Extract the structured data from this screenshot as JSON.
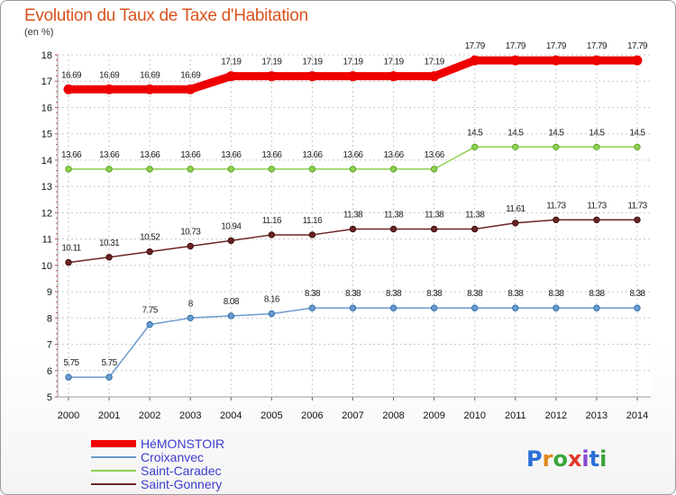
{
  "header": {
    "title": "Evolution du Taux de Taxe d'Habitation",
    "unit": "(en %)"
  },
  "logo": {
    "text": "Proxiti"
  },
  "colors": {
    "HéMONSTOIR": "#ee0000",
    "Croixanvec": "#6b9bcf",
    "Saint-Caradec": "#8fd14f",
    "Saint-Gonnery": "#6b2424"
  },
  "chart_data": {
    "type": "line",
    "title": "Evolution du Taux de Taxe d'Habitation",
    "ylabel": "(en %)",
    "xlabel": "",
    "x": [
      "2000",
      "2001",
      "2002",
      "2003",
      "2004",
      "2005",
      "2006",
      "2007",
      "2008",
      "2009",
      "2010",
      "2011",
      "2012",
      "2013",
      "2014"
    ],
    "ylim": [
      5,
      18
    ],
    "yticks": [
      "5",
      "6",
      "7",
      "8",
      "9",
      "10",
      "11",
      "12",
      "13",
      "14",
      "15",
      "16",
      "17",
      "18"
    ],
    "grid": true,
    "legend_position": "bottom-left",
    "series": [
      {
        "name": "HéMONSTOIR",
        "values": [
          16.69,
          16.69,
          16.69,
          16.69,
          17.19,
          17.19,
          17.19,
          17.19,
          17.19,
          17.19,
          17.79,
          17.79,
          17.79,
          17.79,
          17.79
        ],
        "labels": [
          "16.69",
          "16.69",
          "16.69",
          "16.69",
          "17.19",
          "17.19",
          "17.19",
          "17.19",
          "17.19",
          "17.19",
          "17.79",
          "17.79",
          "17.79",
          "17.79",
          "17.79"
        ],
        "label_indices": [
          0,
          1,
          2,
          3,
          4,
          5,
          6,
          7,
          8,
          9,
          10,
          11,
          12,
          13,
          14
        ]
      },
      {
        "name": "Croixanvec",
        "values": [
          5.75,
          5.75,
          7.75,
          8,
          8.08,
          8.16,
          8.38,
          8.38,
          8.38,
          8.38,
          8.38,
          8.38,
          8.38,
          8.38,
          8.38
        ],
        "labels": [
          "5.75",
          "5.75",
          "7.75",
          "8",
          "8.08",
          "8.16",
          "8.38",
          "8.38",
          "8.38",
          "8.38",
          "8.38",
          "8.38",
          "8.38",
          "8.38",
          "8.38"
        ],
        "label_indices": [
          0,
          1,
          2,
          3,
          4,
          5,
          6,
          7,
          8,
          9,
          10,
          11,
          12,
          13,
          14
        ]
      },
      {
        "name": "Saint-Caradec",
        "values": [
          13.66,
          13.66,
          13.66,
          13.66,
          13.66,
          13.66,
          13.66,
          13.66,
          13.66,
          13.66,
          14.5,
          14.5,
          14.5,
          14.5,
          14.5
        ],
        "labels": [
          "13.66",
          "13.66",
          "13.66",
          "13.66",
          "13.66",
          "13.66",
          "13.66",
          "13.66",
          "13.66",
          "13.66",
          "14.5",
          "14.5",
          "14.5",
          "14.5",
          "14.5"
        ],
        "label_indices": [
          0,
          1,
          2,
          3,
          4,
          5,
          6,
          7,
          8,
          9,
          10,
          11,
          12,
          13,
          14
        ]
      },
      {
        "name": "Saint-Gonnery",
        "values": [
          10.11,
          10.31,
          10.52,
          10.73,
          10.94,
          11.16,
          11.16,
          11.38,
          11.38,
          11.38,
          11.38,
          11.61,
          11.73,
          11.73,
          11.73
        ],
        "labels": [
          "10.11",
          "10.31",
          "10.52",
          "10.73",
          "10.94",
          "11.16",
          "11.16",
          "11.38",
          "11.38",
          "11.38",
          "11.38",
          "11.61",
          "11.73",
          "11.73",
          "11.73"
        ],
        "label_indices": [
          0,
          1,
          2,
          3,
          4,
          5,
          6,
          7,
          8,
          9,
          10,
          11,
          12,
          13,
          14
        ]
      }
    ]
  }
}
